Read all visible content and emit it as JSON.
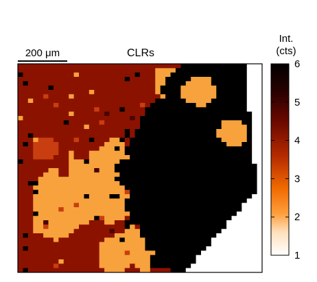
{
  "chart_data": {
    "type": "heatmap",
    "title": "CLRs",
    "scale_bar": {
      "label": "200 μm"
    },
    "colorbar": {
      "label_line1": "Int.",
      "label_line2": "(cts)",
      "range": [
        1,
        6
      ],
      "ticks": [
        1,
        2,
        3,
        4,
        5,
        6
      ],
      "colormap": [
        "#ffffff",
        "#ffcf9a",
        "#ff8c1a",
        "#b33000",
        "#6a0a00",
        "#000000"
      ]
    },
    "grid": {
      "rows": 48,
      "cols": 48,
      "description_levels": "0=background white, 1=light orange, 2=dark red, 3=black"
    },
    "level_colors": {
      "bg": "#ffffff",
      "orange": "#f7a23c",
      "darkred": "#8c1200",
      "black": "#000000",
      "redorange": "#c83e10",
      "brown": "#4a0505"
    }
  }
}
